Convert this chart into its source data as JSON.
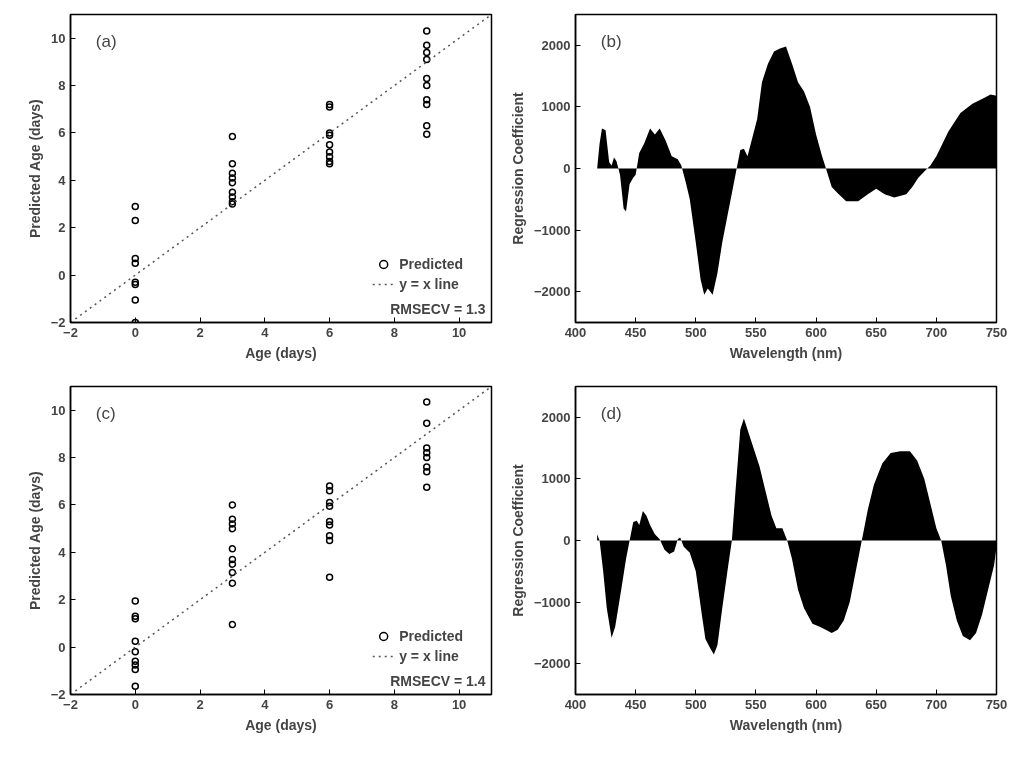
{
  "chart_data": [
    {
      "type": "scatter",
      "xlabel": "Age (days)",
      "ylabel": "Predicted Age (days)",
      "xlim": [
        -2,
        11
      ],
      "ylim": [
        -2,
        11
      ],
      "xticks": [
        -2,
        0,
        2,
        4,
        6,
        8,
        10
      ],
      "yticks": [
        -2,
        0,
        2,
        4,
        6,
        8,
        10
      ],
      "legend": "bottom right",
      "annotations": [
        "(a)",
        "RMSECV = 1.3"
      ],
      "series": [
        {
          "name": "Predicted",
          "marker": "circle",
          "color": "#000000",
          "x": [
            0,
            0,
            0,
            0,
            0,
            0,
            0,
            0,
            3,
            3,
            3,
            3,
            3,
            3,
            3,
            3,
            3,
            6,
            6,
            6,
            6,
            6,
            6,
            6,
            6,
            6,
            9,
            9,
            9,
            9,
            9,
            9,
            9,
            9,
            9,
            9
          ],
          "values": [
            2.9,
            2.3,
            0.7,
            0.5,
            -0.3,
            -0.4,
            -1.05,
            -2.0,
            5.85,
            4.7,
            4.3,
            4.1,
            3.9,
            3.5,
            3.3,
            3.1,
            3.0,
            7.2,
            7.1,
            6.0,
            5.9,
            5.5,
            5.2,
            5.0,
            4.8,
            4.7,
            10.3,
            9.7,
            9.4,
            9.1,
            8.3,
            8.0,
            7.4,
            7.2,
            6.3,
            5.95
          ]
        },
        {
          "name": "y = x line",
          "type": "line",
          "line_style": "dotted",
          "color": "#555555",
          "x": [
            -2,
            11
          ],
          "values": [
            -2,
            11
          ]
        }
      ]
    },
    {
      "type": "area",
      "xlabel": "Wavelength (nm)",
      "ylabel": "Regression Coefficient",
      "xlim": [
        400,
        750
      ],
      "ylim": [
        -2500,
        2500
      ],
      "xticks": [
        400,
        450,
        500,
        550,
        600,
        650,
        700,
        750
      ],
      "yticks": [
        -2000,
        -1000,
        0,
        1000,
        2000
      ],
      "annotations": [
        "(b)"
      ],
      "series": [
        {
          "color": "#000000",
          "x": [
            418,
            420,
            422,
            425,
            428,
            430,
            432,
            434,
            437,
            440,
            442,
            445,
            448,
            450,
            453,
            457,
            462,
            466,
            470,
            475,
            480,
            485,
            488,
            492,
            495,
            500,
            504,
            507,
            510,
            514,
            518,
            522,
            526,
            530,
            534,
            537,
            540,
            543,
            547,
            551,
            555,
            560,
            565,
            570,
            575,
            580,
            585,
            590,
            595,
            600,
            605,
            609,
            613,
            618,
            625,
            635,
            643,
            650,
            657,
            665,
            675,
            680,
            685,
            690,
            695,
            700,
            710,
            720,
            730,
            740,
            745,
            750
          ],
          "values": [
            0,
            400,
            650,
            620,
            100,
            50,
            180,
            120,
            -100,
            -650,
            -700,
            -250,
            -150,
            -100,
            250,
            400,
            650,
            550,
            650,
            450,
            200,
            150,
            50,
            -250,
            -500,
            -1200,
            -1800,
            -2050,
            -1950,
            -2050,
            -1700,
            -1200,
            -800,
            -400,
            0,
            300,
            320,
            200,
            500,
            800,
            1400,
            1700,
            1900,
            1950,
            1980,
            1700,
            1400,
            1250,
            1000,
            550,
            200,
            -50,
            -300,
            -400,
            -530,
            -530,
            -420,
            -330,
            -420,
            -470,
            -420,
            -300,
            -150,
            -50,
            50,
            200,
            600,
            900,
            1050,
            1150,
            1200,
            1180
          ]
        }
      ]
    },
    {
      "type": "scatter",
      "xlabel": "Age (days)",
      "ylabel": "Predicted Age (days)",
      "xlim": [
        -2,
        11
      ],
      "ylim": [
        -2,
        11
      ],
      "xticks": [
        -2,
        0,
        2,
        4,
        6,
        8,
        10
      ],
      "yticks": [
        -2,
        0,
        2,
        4,
        6,
        8,
        10
      ],
      "legend": "bottom right",
      "annotations": [
        "(c)",
        "RMSECV = 1.4"
      ],
      "series": [
        {
          "name": "Predicted",
          "marker": "circle",
          "color": "#000000",
          "x": [
            0,
            0,
            0,
            0,
            0,
            0,
            0,
            0,
            0,
            3,
            3,
            3,
            3,
            3,
            3,
            3,
            3,
            3,
            3,
            6,
            6,
            6,
            6,
            6,
            6,
            6,
            6,
            6,
            9,
            9,
            9,
            9,
            9,
            9,
            9,
            9
          ],
          "values": [
            1.95,
            1.3,
            1.2,
            0.25,
            -0.2,
            -0.6,
            -0.75,
            -0.95,
            -1.65,
            6.0,
            5.4,
            5.2,
            5.0,
            4.15,
            3.7,
            3.5,
            3.15,
            2.7,
            0.95,
            6.8,
            6.6,
            6.1,
            5.95,
            5.3,
            5.15,
            4.7,
            4.5,
            2.95,
            10.35,
            9.45,
            8.4,
            8.2,
            8.0,
            7.6,
            7.4,
            6.75
          ]
        },
        {
          "name": "y = x line",
          "type": "line",
          "line_style": "dotted",
          "color": "#555555",
          "x": [
            -2,
            11
          ],
          "values": [
            -2,
            11
          ]
        }
      ]
    },
    {
      "type": "area",
      "xlabel": "Wavelength (nm)",
      "ylabel": "Regression Coefficient",
      "xlim": [
        400,
        750
      ],
      "ylim": [
        -2500,
        2500
      ],
      "xticks": [
        400,
        450,
        500,
        550,
        600,
        650,
        700,
        750
      ],
      "yticks": [
        -2000,
        -1000,
        0,
        1000,
        2000
      ],
      "annotations": [
        "(d)"
      ],
      "series": [
        {
          "color": "#000000",
          "x": [
            418,
            420,
            423,
            426,
            430,
            433,
            438,
            442,
            445,
            448,
            451,
            453,
            456,
            459,
            462,
            466,
            470,
            474,
            478,
            482,
            485,
            487,
            490,
            495,
            500,
            505,
            508,
            512,
            515,
            518,
            522,
            527,
            530,
            533,
            537,
            540,
            543,
            548,
            553,
            558,
            563,
            567,
            572,
            576,
            580,
            585,
            590,
            597,
            603,
            608,
            613,
            618,
            623,
            628,
            633,
            638,
            643,
            648,
            655,
            662,
            670,
            678,
            684,
            690,
            695,
            700,
            704,
            708,
            712,
            717,
            722,
            728,
            733,
            738,
            743,
            748,
            750
          ],
          "values": [
            100,
            0,
            -500,
            -1100,
            -1580,
            -1400,
            -800,
            -300,
            0,
            300,
            320,
            250,
            480,
            400,
            250,
            100,
            20,
            -150,
            -220,
            -180,
            20,
            50,
            -100,
            -200,
            -500,
            -1200,
            -1600,
            -1750,
            -1850,
            -1700,
            -1100,
            -400,
            0,
            800,
            1800,
            1980,
            1800,
            1500,
            1200,
            800,
            400,
            200,
            200,
            0,
            -300,
            -800,
            -1100,
            -1350,
            -1400,
            -1450,
            -1500,
            -1450,
            -1300,
            -1000,
            -500,
            0,
            500,
            900,
            1250,
            1420,
            1450,
            1450,
            1300,
            1000,
            600,
            200,
            0,
            -400,
            -900,
            -1300,
            -1550,
            -1620,
            -1500,
            -1200,
            -800,
            -400,
            -100
          ]
        }
      ]
    }
  ]
}
